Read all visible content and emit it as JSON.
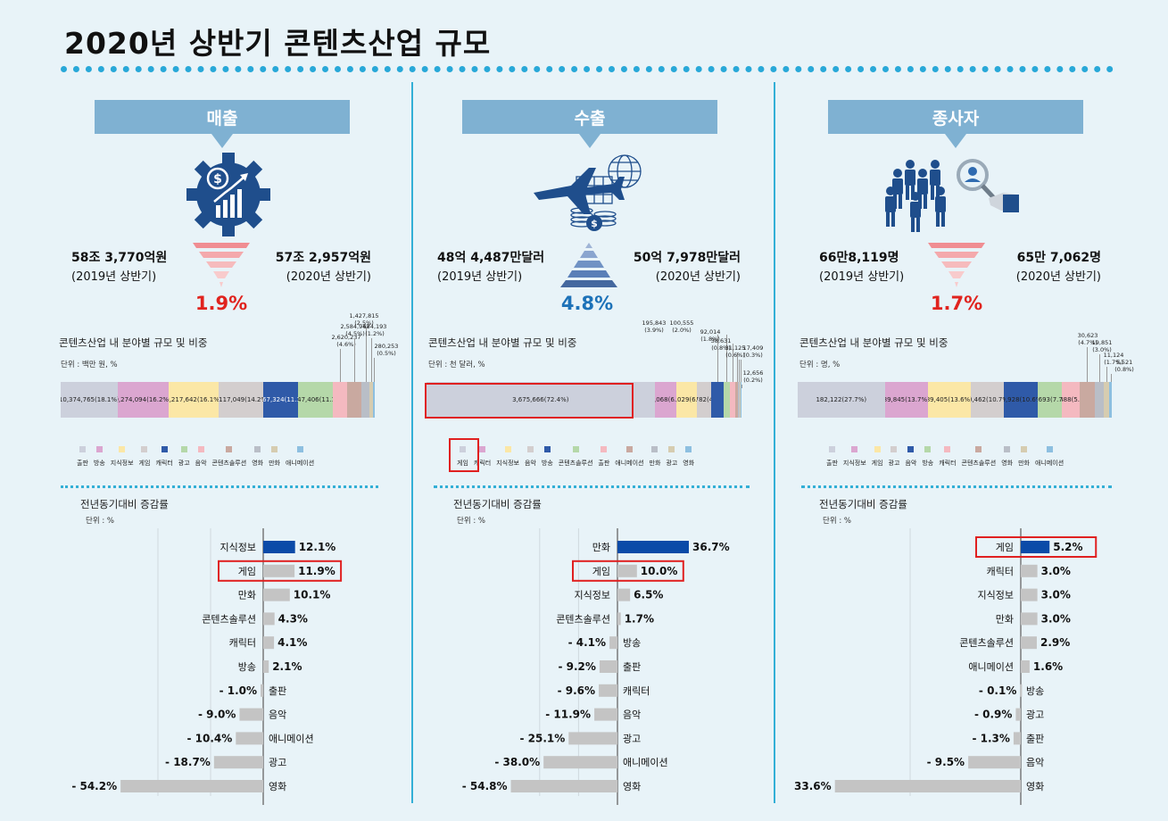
{
  "title": "2020년 상반기 콘텐츠산업 규모",
  "colors": {
    "accent": "#33afd6",
    "banner": "#7fb1d2",
    "down": "#e0231e",
    "up": "#1d72b8",
    "highlight_bar": "#0b4ba8",
    "bar": "#c4c4c4",
    "frame": "#e02020"
  },
  "panels": [
    {
      "banner": "매출",
      "icon": "gear-dollar-growth-icon",
      "direction": "down",
      "prev_value": "58조 3,770억원",
      "prev_caption": "(2019년 상반기)",
      "curr_value": "57조 2,957억원",
      "curr_caption": "(2020년 상반기)",
      "change_pct": "1.9%",
      "stack_title": "콘텐츠산업 내 분야별 규모 및 비중",
      "stack_unit": "단위 : 백만 원, %",
      "stack": {
        "segments": [
          {
            "name": "출판",
            "value": 10374765,
            "share": 18.1,
            "label": "10,374,765",
            "pct": "(18.1%)",
            "color": "#ccd0dc"
          },
          {
            "name": "방송",
            "value": 9274094,
            "share": 16.2,
            "label": "9,274,094",
            "pct": "(16.2%)",
            "color": "#dba6d0"
          },
          {
            "name": "지식정보",
            "value": 9217642,
            "share": 16.1,
            "label": "9,217,642",
            "pct": "(16.1%)",
            "color": "#fbe7a6"
          },
          {
            "name": "게임",
            "value": 8117049,
            "share": 14.2,
            "label": "8,117,049",
            "pct": "(14.2%)",
            "color": "#d3cece"
          },
          {
            "name": "캐릭터",
            "value": 6367324,
            "share": 11.1,
            "label": "6,367,324",
            "pct": "(11.1%)",
            "color": "#2f5aa8"
          },
          {
            "name": "광고",
            "value": 6347406,
            "share": 11.1,
            "label": "6,347,406",
            "pct": "(11.1%)",
            "color": "#b5d8a9"
          },
          {
            "name": "음악",
            "value": 2620237,
            "share": 4.6,
            "label": "",
            "pct": "",
            "color": "#f4b9c0"
          },
          {
            "name": "콘텐츠솔루션",
            "value": 2584947,
            "share": 4.5,
            "label": "",
            "pct": "",
            "color": "#c9a9a0"
          },
          {
            "name": "영화",
            "value": 1427815,
            "share": 2.5,
            "label": "",
            "pct": "",
            "color": "#b9bec7"
          },
          {
            "name": "만화",
            "value": 684193,
            "share": 1.2,
            "label": "",
            "pct": "",
            "color": "#d6ccb0"
          },
          {
            "name": "애니메이션",
            "value": 280253,
            "share": 0.5,
            "label": "",
            "pct": "",
            "color": "#8dbfe0"
          }
        ],
        "callouts": [
          {
            "label": "2,620,237",
            "pct": "(4.6%)"
          },
          {
            "label": "2,584,947",
            "pct": "(4.5%)"
          },
          {
            "label": "1,427,815",
            "pct": "(2.5%)"
          },
          {
            "label": "684,193",
            "pct": "(1.2%)"
          },
          {
            "label": "280,253",
            "pct": "(0.5%)"
          }
        ],
        "legend": [
          "출판",
          "방송",
          "지식정보",
          "게임",
          "캐릭터",
          "광고",
          "음악",
          "콘텐츠솔루션",
          "영화",
          "만화",
          "애니메이션"
        ]
      },
      "growth_title": "전년동기대비 증감률",
      "growth_unit": "단위 : %",
      "chart_data": {
        "type": "bar",
        "orientation": "horizontal",
        "title": "전년동기대비 증감률",
        "unit": "%",
        "categories": [
          "지식정보",
          "게임",
          "만화",
          "콘텐츠솔루션",
          "캐릭터",
          "방송",
          "출판",
          "음악",
          "애니메이션",
          "광고",
          "영화"
        ],
        "values": [
          12.1,
          11.9,
          10.1,
          4.3,
          4.1,
          2.1,
          -1.0,
          -9.0,
          -10.4,
          -18.7,
          -54.2
        ],
        "labels": [
          "12.1%",
          "11.9%",
          "10.1%",
          "4.3%",
          "4.1%",
          "2.1%",
          "- 1.0%",
          "- 9.0%",
          "- 10.4%",
          "- 18.7%",
          "- 54.2%"
        ],
        "highlighted": "지식정보",
        "boxed": "게임",
        "xlim": [
          -60,
          20
        ]
      }
    },
    {
      "banner": "수출",
      "icon": "airplane-globe-coins-icon",
      "direction": "up",
      "prev_value": "48억 4,487만달러",
      "prev_caption": "(2019년 상반기)",
      "curr_value": "50억 7,978만달러",
      "curr_caption": "(2020년 상반기)",
      "change_pct": "4.8%",
      "stack_title": "콘텐츠산업 내 분야별 규모 및 비중",
      "stack_unit": "단위 : 천 달러, %",
      "stack": {
        "segments": [
          {
            "name": "게임",
            "value": 3675666,
            "share": 72.4,
            "label": "3,675,666",
            "pct": "(72.4%)",
            "color": "#ccd0dc"
          },
          {
            "name": "캐릭터",
            "value": 350068,
            "share": 6.9,
            "label": "350,068",
            "pct": "(6.9%)",
            "color": "#dba6d0"
          },
          {
            "name": "지식정보",
            "value": 336029,
            "share": 6.6,
            "label": "336,029",
            "pct": "(6.6%)",
            "color": "#fbe7a6"
          },
          {
            "name": "음악",
            "value": 229782,
            "share": 4.5,
            "label": "229,782",
            "pct": "(4.5%)",
            "color": "#d3cece"
          },
          {
            "name": "방송",
            "value": 195843,
            "share": 3.9,
            "label": "",
            "pct": "",
            "color": "#2f5aa8"
          },
          {
            "name": "콘텐츠솔루션",
            "value": 100555,
            "share": 2.0,
            "label": "",
            "pct": "",
            "color": "#b5d8a9"
          },
          {
            "name": "출판",
            "value": 92014,
            "share": 1.8,
            "label": "",
            "pct": "",
            "color": "#f4b9c0"
          },
          {
            "name": "애니메이션",
            "value": 38631,
            "share": 0.8,
            "label": "",
            "pct": "",
            "color": "#c9a9a0"
          },
          {
            "name": "만화",
            "value": 31125,
            "share": 0.6,
            "label": "",
            "pct": "",
            "color": "#b9bec7"
          },
          {
            "name": "광고",
            "value": 17409,
            "share": 0.3,
            "label": "",
            "pct": "",
            "color": "#d6ccb0"
          },
          {
            "name": "영화",
            "value": 12656,
            "share": 0.2,
            "label": "",
            "pct": "",
            "color": "#8dbfe0"
          }
        ],
        "callouts": [
          {
            "label": "195,843",
            "pct": "(3.9%)"
          },
          {
            "label": "100,555",
            "pct": "(2.0%)"
          },
          {
            "label": "92,014",
            "pct": "(1.8%)"
          },
          {
            "label": "38,631",
            "pct": "(0.8%)"
          },
          {
            "label": "31,125",
            "pct": "(0.6%)"
          },
          {
            "label": "17,409",
            "pct": "(0.3%)"
          },
          {
            "label": "12,656",
            "pct": "(0.2%)"
          }
        ],
        "legend": [
          "게임",
          "캐릭터",
          "지식정보",
          "음악",
          "방송",
          "콘텐츠솔루션",
          "출판",
          "애니메이션",
          "만화",
          "광고",
          "영화"
        ]
      },
      "growth_title": "전년동기대비 증감률",
      "growth_unit": "단위 : %",
      "chart_data": {
        "type": "bar",
        "orientation": "horizontal",
        "title": "전년동기대비 증감률",
        "unit": "%",
        "categories": [
          "만화",
          "게임",
          "지식정보",
          "콘텐츠솔루션",
          "방송",
          "출판",
          "캐릭터",
          "음악",
          "광고",
          "애니메이션",
          "영화"
        ],
        "values": [
          36.7,
          10.0,
          6.5,
          1.7,
          -4.1,
          -9.2,
          -9.6,
          -11.9,
          -25.1,
          -38.0,
          -54.8
        ],
        "labels": [
          "36.7%",
          "10.0%",
          "6.5%",
          "1.7%",
          "- 4.1%",
          "- 9.2%",
          "- 9.6%",
          "- 11.9%",
          "- 25.1%",
          "- 38.0%",
          "- 54.8%"
        ],
        "highlighted": "만화",
        "boxed": "게임",
        "xlim": [
          -60,
          40
        ]
      }
    },
    {
      "banner": "종사자",
      "icon": "people-search-icon",
      "direction": "down",
      "prev_value": "66만8,119명",
      "prev_caption": "(2019년 상반기)",
      "curr_value": "65만 7,062명",
      "curr_caption": "(2020년 상반기)",
      "change_pct": "1.7%",
      "stack_title": "콘텐츠산업 내 분야별 규모 및 비중",
      "stack_unit": "단위 : 명, %",
      "stack": {
        "segments": [
          {
            "name": "출판",
            "value": 182122,
            "share": 27.7,
            "label": "182,122",
            "pct": "(27.7%)",
            "color": "#ccd0dc"
          },
          {
            "name": "지식정보",
            "value": 89845,
            "share": 13.7,
            "label": "89,845",
            "pct": "(13.7%)",
            "color": "#dba6d0"
          },
          {
            "name": "게임",
            "value": 89405,
            "share": 13.6,
            "label": "89,405",
            "pct": "(13.6%)",
            "color": "#fbe7a6"
          },
          {
            "name": "광고",
            "value": 70462,
            "share": 10.7,
            "label": "70,462",
            "pct": "(10.7%)",
            "color": "#d3cece"
          },
          {
            "name": "음악",
            "value": 69928,
            "share": 10.6,
            "label": "69,928",
            "pct": "(10.6%)",
            "color": "#2f5aa8"
          },
          {
            "name": "방송",
            "value": 50693,
            "share": 7.7,
            "label": "50,693",
            "pct": "(7.7%)",
            "color": "#b5d8a9"
          },
          {
            "name": "캐릭터",
            "value": 37488,
            "share": 5.7,
            "label": "37,488",
            "pct": "(5.7%)",
            "color": "#f4b9c0"
          },
          {
            "name": "콘텐츠솔루션",
            "value": 30623,
            "share": 4.7,
            "label": "",
            "pct": "",
            "color": "#c9a9a0"
          },
          {
            "name": "영화",
            "value": 19851,
            "share": 3.0,
            "label": "",
            "pct": "",
            "color": "#b9bec7"
          },
          {
            "name": "만화",
            "value": 11124,
            "share": 1.7,
            "label": "",
            "pct": "",
            "color": "#d6ccb0"
          },
          {
            "name": "애니메이션",
            "value": 5521,
            "share": 0.8,
            "label": "",
            "pct": "",
            "color": "#8dbfe0"
          }
        ],
        "callouts": [
          {
            "label": "30,623",
            "pct": "(4.7%)"
          },
          {
            "label": "19,851",
            "pct": "(3.0%)"
          },
          {
            "label": "11,124",
            "pct": "(1.7%)"
          },
          {
            "label": "5,521",
            "pct": "(0.8%)"
          }
        ],
        "legend": [
          "출판",
          "지식정보",
          "게임",
          "광고",
          "음악",
          "방송",
          "캐릭터",
          "콘텐츠솔루션",
          "영화",
          "만화",
          "애니메이션"
        ]
      },
      "growth_title": "전년동기대비 증감률",
      "growth_unit": "단위 : %",
      "chart_data": {
        "type": "bar",
        "orientation": "horizontal",
        "title": "전년동기대비 증감률",
        "unit": "%",
        "categories": [
          "게임",
          "캐릭터",
          "지식정보",
          "만화",
          "콘텐츠솔루션",
          "애니메이션",
          "방송",
          "광고",
          "출판",
          "음악",
          "영화"
        ],
        "values": [
          5.2,
          3.0,
          3.0,
          3.0,
          2.9,
          1.6,
          -0.1,
          -0.9,
          -1.3,
          -9.5,
          -33.6
        ],
        "labels": [
          "5.2%",
          "3.0%",
          "3.0%",
          "3.0%",
          "2.9%",
          "1.6%",
          "- 0.1%",
          "- 0.9%",
          "- 1.3%",
          "- 9.5%",
          "- 33.6%"
        ],
        "highlighted": "게임",
        "boxed": "게임",
        "xlim": [
          -40,
          8
        ]
      }
    }
  ]
}
